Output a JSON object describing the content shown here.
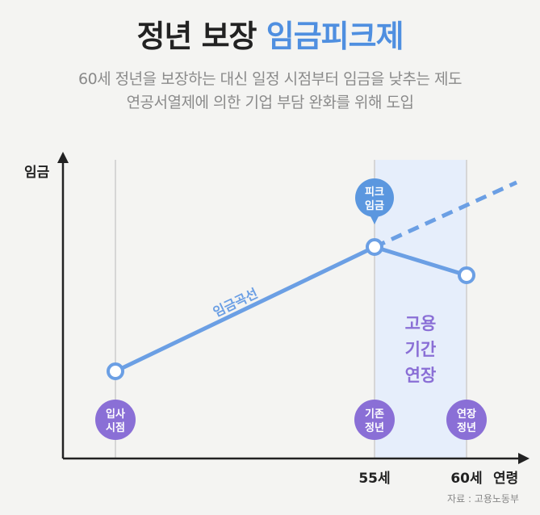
{
  "header": {
    "title_main": "정년 보장",
    "title_accent": "임금피크제",
    "subtitle_line1": "60세 정년을 보장하는 대신 일정 시점부터 임금을 낮추는 제도",
    "subtitle_line2": "연공서열제에 의한 기업 부담 완화를 위해 도입"
  },
  "chart": {
    "y_axis_label": "임금",
    "x_axis_label": "연령",
    "x_ticks": [
      "55세",
      "60세"
    ],
    "curve_label": "임금곡선",
    "peak_label_line1": "피크",
    "peak_label_line2": "임금",
    "band_label_lines": [
      "고용",
      "기간",
      "연장"
    ],
    "markers": [
      {
        "line1": "입사",
        "line2": "시점"
      },
      {
        "line1": "기존",
        "line2": "정년"
      },
      {
        "line1": "연장",
        "line2": "정년"
      }
    ]
  },
  "colors": {
    "title_accent": "#4f8fe0",
    "curve": "#6b9fe4",
    "marker_purple": "#8a6fd6",
    "band": "#e6eefb",
    "band_text": "#8a6fd6",
    "peak_bubble": "#5b97df"
  },
  "source": "자료 : 고용노동부"
}
